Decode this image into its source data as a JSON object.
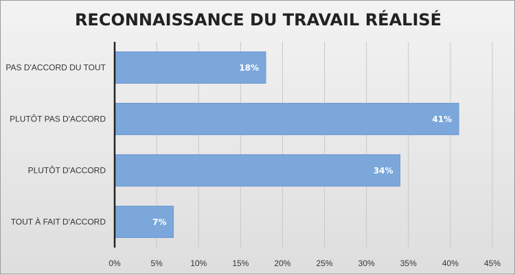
{
  "chart_data": {
    "type": "bar",
    "orientation": "horizontal",
    "title": "RECONNAISSANCE DU TRAVAIL RÉALISÉ",
    "categories": [
      "PAS D'ACCORD DU TOUT",
      "PLUTÔT PAS D'ACCORD",
      "PLUTÔT D'ACCORD",
      "TOUT À FAIT D'ACCORD"
    ],
    "values": [
      18,
      41,
      34,
      7
    ],
    "data_labels": [
      "18%",
      "41%",
      "34%",
      "7%"
    ],
    "xlim": [
      0,
      45
    ],
    "x_ticks": [
      0,
      5,
      10,
      15,
      20,
      25,
      30,
      35,
      40,
      45
    ],
    "x_tick_labels": [
      "0%",
      "5%",
      "10%",
      "15%",
      "20%",
      "25%",
      "30%",
      "35%",
      "40%",
      "45%"
    ],
    "xlabel": "",
    "ylabel": "",
    "grid": true,
    "legend": false,
    "colors": {
      "bar": "#7ba7db",
      "bar_border": "#6f9ad0",
      "grid": "#c8c8c8",
      "axis": "#222222",
      "label_text": "#ffffff",
      "text": "#333333"
    }
  }
}
